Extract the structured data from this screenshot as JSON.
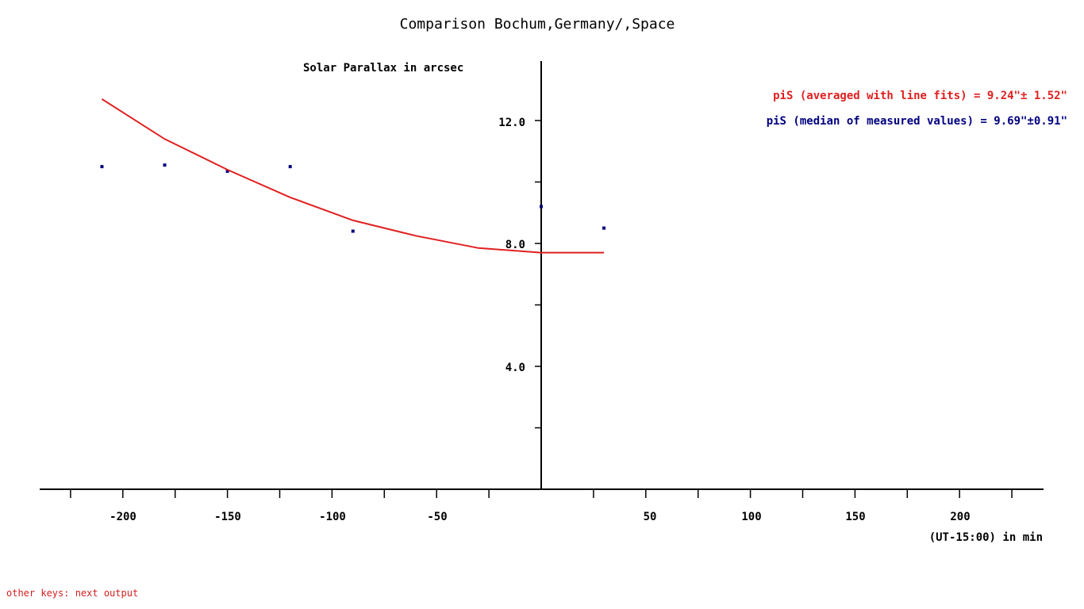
{
  "chart_data": {
    "type": "scatter",
    "title": "Comparison Bochum,Germany/,Space",
    "ylabel": "Solar Parallax in arcsec",
    "xlabel": "(UT-15:00) in min",
    "xlim": [
      -240,
      240
    ],
    "ylim": [
      0,
      14
    ],
    "x_tick_labels": [
      "-200",
      "-150",
      "-100",
      "-50",
      "50",
      "100",
      "150",
      "200"
    ],
    "y_tick_labels": [
      "12.0",
      "8.0",
      "4.0"
    ],
    "grid": false,
    "series": [
      {
        "type": "scatter",
        "color": "#000080",
        "points": [
          {
            "x": -210,
            "y": 10.5
          },
          {
            "x": -180,
            "y": 10.55
          },
          {
            "x": -150,
            "y": 10.35
          },
          {
            "x": -120,
            "y": 10.5
          },
          {
            "x": -90,
            "y": 8.4
          },
          {
            "x": 0,
            "y": 9.2
          },
          {
            "x": 30,
            "y": 8.5
          }
        ]
      },
      {
        "type": "line",
        "color": "#e02020",
        "points": [
          {
            "x": -210,
            "y": 12.7
          },
          {
            "x": -180,
            "y": 11.4
          },
          {
            "x": -150,
            "y": 10.4
          },
          {
            "x": -120,
            "y": 9.5
          },
          {
            "x": -90,
            "y": 8.75
          },
          {
            "x": -60,
            "y": 8.25
          },
          {
            "x": -30,
            "y": 7.85
          },
          {
            "x": 0,
            "y": 7.7
          },
          {
            "x": 30,
            "y": 7.7
          }
        ]
      }
    ],
    "annotations": [
      {
        "text": "piS (averaged with line fits) = 9.24\"± 1.52\"",
        "color": "#e02020"
      },
      {
        "text": "piS (median of measured values) = 9.69\"±0.91\"",
        "color": "#000080"
      }
    ]
  },
  "footer": {
    "text": "other keys: next output",
    "color": "#d22020"
  }
}
